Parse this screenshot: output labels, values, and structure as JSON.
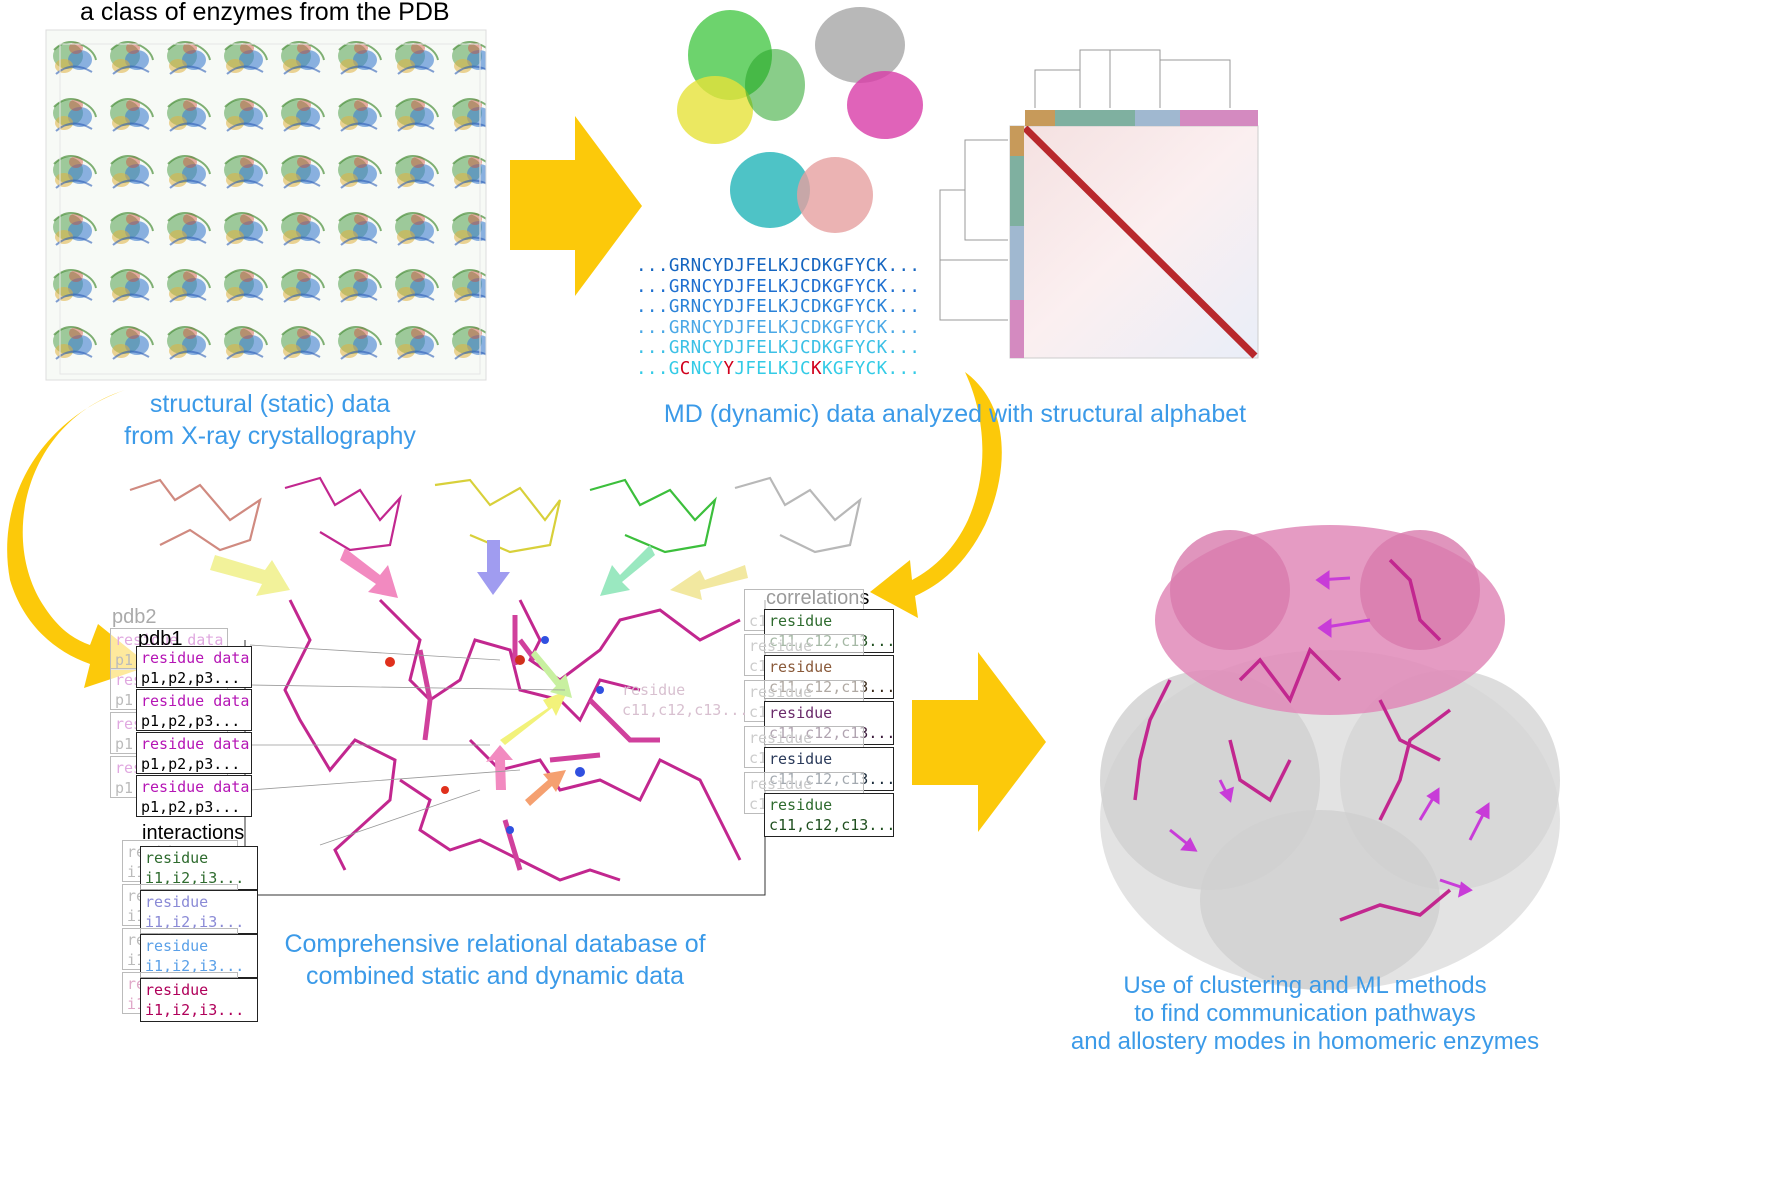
{
  "titles": {
    "pdb_class": "a class of enzymes from the PDB"
  },
  "captions": {
    "static": [
      "structural (static) data",
      "from X-ray crystallography"
    ],
    "md": "MD (dynamic) data analyzed with structural alphabet",
    "database": [
      "Comprehensive relational database of",
      "combined static and dynamic data"
    ],
    "ml": [
      "Use of clustering and ML methods",
      "to find communication pathways",
      "and allostery modes in homomeric enzymes"
    ]
  },
  "sequences": [
    {
      "prefix": "...",
      "body": "GRNCYDJFELKJCDKGFYCK",
      "suffix": "...",
      "color": "#1565c0"
    },
    {
      "prefix": "...",
      "body": "GRNCYDJFELKJCDKGFYCK",
      "suffix": "...",
      "color": "#1e6fd0"
    },
    {
      "prefix": "...",
      "body": "GRNCYDJFELKJCDKGFYCK",
      "suffix": "...",
      "color": "#2a82d8"
    },
    {
      "prefix": "...",
      "body": "GRNCYDJFELKJCDKGFYCK",
      "suffix": "...",
      "color": "#4aa8e6"
    },
    {
      "prefix": "...",
      "body": "GRNCYDJFELKJCDKGFYCK",
      "suffix": "...",
      "color": "#3cc0e6"
    }
  ],
  "sequence_last": {
    "color": "#33cbe6",
    "mutation_color": "#d0001c",
    "parts": [
      "...G",
      "C",
      "NCY",
      "Y",
      "JFELKJC",
      "K",
      "KGFYCK..."
    ]
  },
  "pdb": {
    "back_label": "pdb2",
    "front_label": "pdb1",
    "row_label": "residue data",
    "row_values": "p1,p2,p3..."
  },
  "interactions": {
    "label": "interactions",
    "row_label": "residue",
    "row_values": "i1,i2,i3...",
    "colors": [
      "#2e6b2e",
      "#8a8ad6",
      "#5aa0e8",
      "#b0005a"
    ]
  },
  "correlations": {
    "label": "correlations",
    "row_label": "residue",
    "row_values": "c11,c12,c13...",
    "colors": [
      "#2e6b2e",
      "#8a5a3a",
      "#6a2a6a",
      "#2a3a5a",
      "#2e6b2e"
    ]
  },
  "colors": {
    "arrow": "#fcc90a",
    "caption": "#3b9ae8",
    "magenta": "#c2278f",
    "pink": "#e58ab8"
  }
}
